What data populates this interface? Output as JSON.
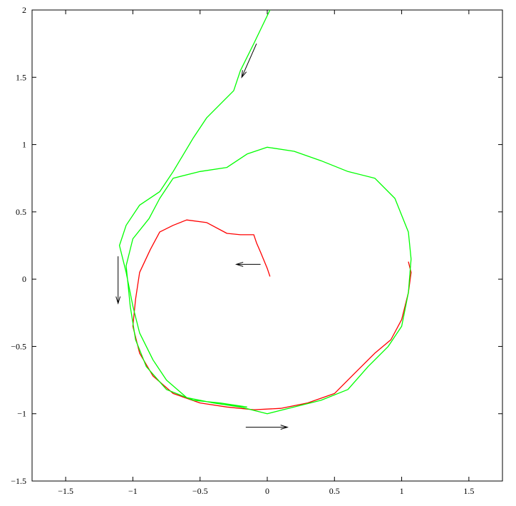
{
  "chart_data": {
    "type": "line",
    "xlim": [
      -1.75,
      1.75
    ],
    "ylim": [
      -1.5,
      2
    ],
    "xticks": [
      {
        "value": -1.5,
        "label": "−1.5"
      },
      {
        "value": -1,
        "label": "−1"
      },
      {
        "value": -0.5,
        "label": "−0.5"
      },
      0,
      0.5,
      1,
      1.5
    ],
    "yticks": [
      {
        "value": -1.5,
        "label": "−1.5"
      },
      {
        "value": -1,
        "label": "−1"
      },
      {
        "value": -0.5,
        "label": "−0.5"
      },
      0,
      0.5,
      1,
      1.5,
      2
    ],
    "grid": false,
    "series": [
      {
        "color": "#ff0000",
        "x": [
          0.02,
          0.0,
          -0.05,
          -0.08,
          -0.1,
          -0.2,
          -0.3,
          -0.45,
          -0.6,
          -0.7,
          -0.8,
          -0.87,
          -0.95,
          -0.98,
          -1.0,
          -0.95,
          -0.85,
          -0.7,
          -0.5,
          -0.3,
          -0.1,
          0.1,
          0.3,
          0.5,
          0.65,
          0.8,
          0.92,
          1.0,
          1.05,
          1.07,
          1.05
        ],
        "values": [
          0.02,
          0.08,
          0.2,
          0.27,
          0.33,
          0.33,
          0.34,
          0.42,
          0.44,
          0.4,
          0.35,
          0.22,
          0.05,
          -0.15,
          -0.35,
          -0.55,
          -0.72,
          -0.85,
          -0.92,
          -0.95,
          -0.97,
          -0.96,
          -0.92,
          -0.85,
          -0.7,
          -0.55,
          -0.45,
          -0.3,
          -0.1,
          0.05,
          0.13
        ]
      },
      {
        "color": "#00ff00",
        "x": [
          0.02,
          -0.1,
          -0.2,
          -0.25,
          -0.3,
          -0.45,
          -0.55,
          -0.7,
          -0.8,
          -0.95,
          -1.05,
          -1.1,
          -1.05,
          -1.0,
          -0.95,
          -0.85,
          -0.75,
          -0.6,
          -0.4,
          -0.2,
          0.0,
          0.2,
          0.4,
          0.6,
          0.75,
          0.9,
          1.0,
          1.05,
          1.07,
          1.05,
          0.95,
          0.8,
          0.6,
          0.4,
          0.2,
          0.0,
          -0.15,
          -0.3,
          -0.5,
          -0.7,
          -0.8,
          -0.88,
          -1.0,
          -1.05,
          -1.02,
          -0.98,
          -0.9,
          -0.75,
          -0.55,
          -0.35,
          -0.15
        ],
        "values": [
          2.0,
          1.75,
          1.55,
          1.4,
          1.35,
          1.2,
          1.05,
          0.8,
          0.65,
          0.55,
          0.4,
          0.25,
          0.05,
          -0.2,
          -0.4,
          -0.6,
          -0.75,
          -0.88,
          -0.92,
          -0.95,
          -1.0,
          -0.95,
          -0.9,
          -0.82,
          -0.65,
          -0.5,
          -0.35,
          -0.1,
          0.15,
          0.35,
          0.6,
          0.75,
          0.8,
          0.88,
          0.95,
          0.98,
          0.93,
          0.83,
          0.8,
          0.75,
          0.6,
          0.45,
          0.3,
          0.1,
          -0.2,
          -0.45,
          -0.65,
          -0.82,
          -0.9,
          -0.92,
          -0.95
        ]
      }
    ],
    "arrows": [
      {
        "x": [
          -0.08,
          -0.19
        ],
        "y": [
          1.75,
          1.5
        ]
      },
      {
        "x": [
          -1.11,
          -1.11
        ],
        "y": [
          0.17,
          -0.18
        ]
      },
      {
        "x": [
          -0.05,
          -0.23
        ],
        "y": [
          0.11,
          0.11
        ]
      },
      {
        "x": [
          -0.16,
          0.15
        ],
        "y": [
          -1.1,
          -1.1
        ]
      }
    ]
  }
}
